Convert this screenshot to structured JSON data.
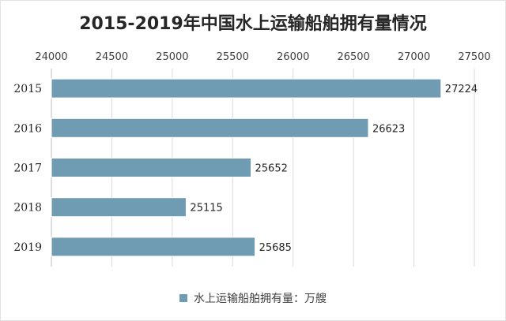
{
  "colors": {
    "bar": "#6f9cb2",
    "grid": "#d9d9d9",
    "axis": "#bfbfbf"
  },
  "chart_data": {
    "type": "bar",
    "orientation": "horizontal",
    "title": "2015-2019年中国水上运输船舶拥有量情况",
    "categories": [
      "2015",
      "2016",
      "2017",
      "2018",
      "2019"
    ],
    "series": [
      {
        "name": "水上运输船舶拥有量：万艘",
        "values": [
          27224,
          26623,
          25652,
          25115,
          25685
        ]
      }
    ],
    "xlim": [
      24000,
      27500
    ],
    "xticks": [
      24000,
      24500,
      25000,
      25500,
      26000,
      26500,
      27000,
      27500
    ],
    "x_axis_position": "top",
    "grid": true,
    "data_labels": true,
    "legend_position": "bottom"
  }
}
